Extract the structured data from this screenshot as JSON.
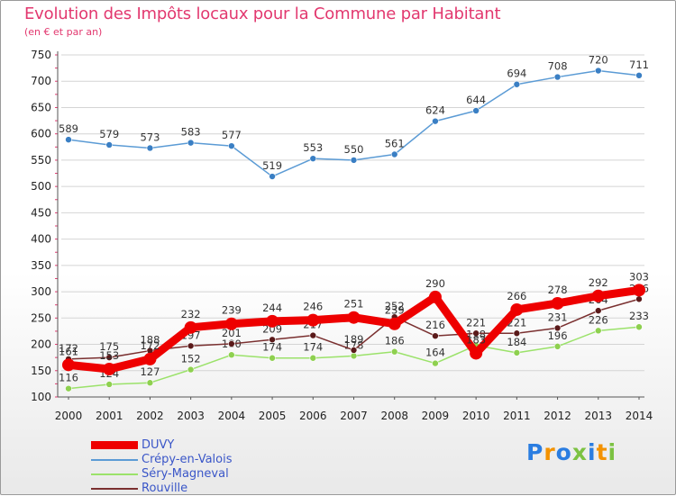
{
  "chart_data": {
    "type": "line",
    "title": "Evolution des Impôts locaux pour la Commune par Habitant",
    "subtitle": "(en € et par an)",
    "xlabel": "",
    "ylabel": "",
    "ylim": [
      100,
      750
    ],
    "yticks": [
      100,
      150,
      200,
      250,
      300,
      350,
      400,
      450,
      500,
      550,
      600,
      650,
      700,
      750
    ],
    "x": [
      "2000",
      "2001",
      "2002",
      "2003",
      "2004",
      "2005",
      "2006",
      "2007",
      "2008",
      "2009",
      "2010",
      "2011",
      "2012",
      "2013",
      "2014"
    ],
    "grid": true,
    "series": [
      {
        "name": "Crépy-en-Valois",
        "color": "#5b9bd5",
        "marker_color": "#3a7fc4",
        "values": [
          589,
          579,
          573,
          583,
          577,
          519,
          553,
          550,
          561,
          624,
          644,
          694,
          708,
          720,
          711
        ]
      },
      {
        "name": "Séry-Magneval",
        "color": "#9be26a",
        "marker_color": "#8ed04f",
        "values": [
          116,
          124,
          127,
          152,
          180,
          174,
          174,
          178,
          186,
          164,
          198,
          184,
          196,
          226,
          233
        ]
      },
      {
        "name": "Rouville",
        "color": "#7a3030",
        "marker_color": "#5a1a1a",
        "values": [
          172,
          175,
          188,
          197,
          201,
          209,
          217,
          189,
          252,
          216,
          221,
          221,
          231,
          264,
          286
        ]
      },
      {
        "name": "DUVY",
        "color": "#ee0000",
        "marker_color": "#ee0000",
        "values": [
          161,
          153,
          172,
          232,
          239,
          244,
          246,
          251,
          239,
          290,
          183,
          266,
          278,
          292,
          303
        ]
      }
    ],
    "legend": {
      "placement": "bottom-left",
      "items": [
        "DUVY",
        "Crépy-en-Valois",
        "Séry-Magneval",
        "Rouville"
      ]
    }
  },
  "logo": {
    "text": "Proxiti",
    "letter_colors": [
      "#2a7de1",
      "#f39200",
      "#2a7de1",
      "#7cc242",
      "#2a7de1",
      "#f39200",
      "#7cc242"
    ]
  }
}
